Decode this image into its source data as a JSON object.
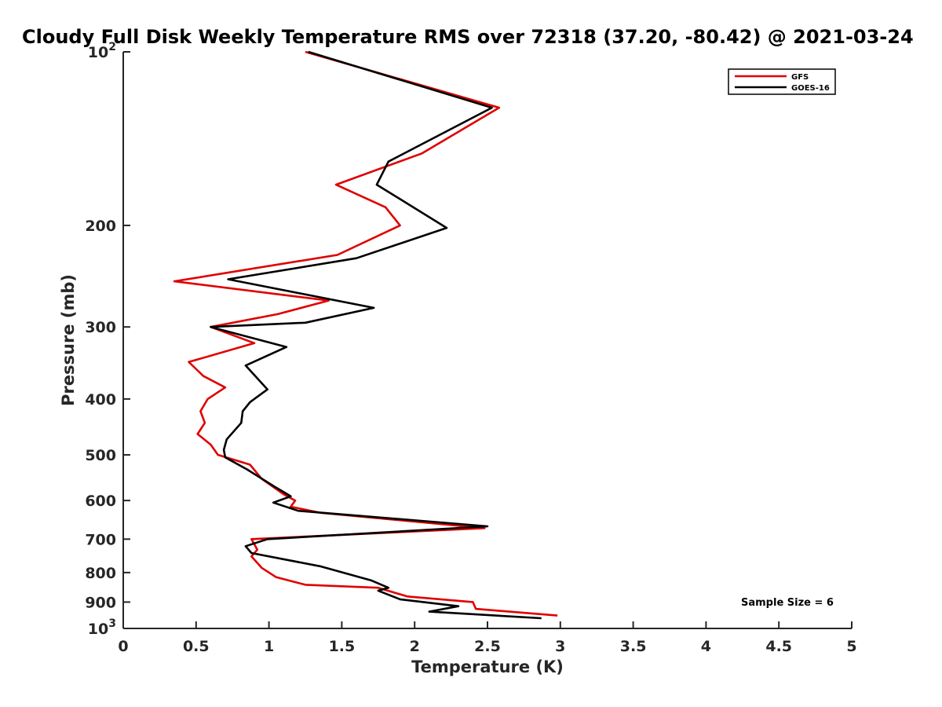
{
  "chart_data": {
    "type": "line",
    "title": "Cloudy Full Disk Weekly Temperature RMS over 72318 (37.20, -80.42) @ 2021-03-24",
    "xlabel": "Temperature (K)",
    "ylabel": "Pressure (mb)",
    "xlim": [
      0,
      5
    ],
    "ylim": [
      100,
      1000
    ],
    "y_scale": "log",
    "y_reversed": true,
    "x_ticks": [
      0,
      0.5,
      1,
      1.5,
      2,
      2.5,
      3,
      3.5,
      4,
      4.5,
      5
    ],
    "x_tick_labels": [
      "0",
      "0.5",
      "1",
      "1.5",
      "2",
      "2.5",
      "3",
      "3.5",
      "4",
      "4.5",
      "5"
    ],
    "y_ticks": [
      100,
      200,
      300,
      400,
      500,
      600,
      700,
      800,
      900,
      1000
    ],
    "y_tick_labels": [
      {
        "base": "10",
        "exp": "2"
      },
      {
        "base": "200",
        "exp": ""
      },
      {
        "base": "300",
        "exp": ""
      },
      {
        "base": "400",
        "exp": ""
      },
      {
        "base": "500",
        "exp": ""
      },
      {
        "base": "600",
        "exp": ""
      },
      {
        "base": "700",
        "exp": ""
      },
      {
        "base": "800",
        "exp": ""
      },
      {
        "base": "900",
        "exp": ""
      },
      {
        "base": "10",
        "exp": "3"
      }
    ],
    "grid": false,
    "legend_position": "top-right",
    "annotation": "Sample Size = 6",
    "series": [
      {
        "name": "GFS",
        "color": "#e00000",
        "points": [
          {
            "x": 1.25,
            "y": 100
          },
          {
            "x": 2.58,
            "y": 125
          },
          {
            "x": 2.05,
            "y": 150
          },
          {
            "x": 1.46,
            "y": 170
          },
          {
            "x": 1.8,
            "y": 186
          },
          {
            "x": 1.9,
            "y": 200
          },
          {
            "x": 1.47,
            "y": 225
          },
          {
            "x": 0.35,
            "y": 250
          },
          {
            "x": 1.41,
            "y": 270
          },
          {
            "x": 1.06,
            "y": 285
          },
          {
            "x": 0.6,
            "y": 300
          },
          {
            "x": 0.9,
            "y": 320
          },
          {
            "x": 0.45,
            "y": 345
          },
          {
            "x": 0.55,
            "y": 365
          },
          {
            "x": 0.7,
            "y": 382
          },
          {
            "x": 0.58,
            "y": 400
          },
          {
            "x": 0.53,
            "y": 420
          },
          {
            "x": 0.56,
            "y": 440
          },
          {
            "x": 0.51,
            "y": 460
          },
          {
            "x": 0.6,
            "y": 480
          },
          {
            "x": 0.65,
            "y": 500
          },
          {
            "x": 0.87,
            "y": 520
          },
          {
            "x": 0.95,
            "y": 550
          },
          {
            "x": 1.1,
            "y": 585
          },
          {
            "x": 1.18,
            "y": 600
          },
          {
            "x": 1.15,
            "y": 615
          },
          {
            "x": 1.35,
            "y": 630
          },
          {
            "x": 2.48,
            "y": 670
          },
          {
            "x": 0.88,
            "y": 700
          },
          {
            "x": 0.92,
            "y": 730
          },
          {
            "x": 0.88,
            "y": 750
          },
          {
            "x": 0.95,
            "y": 785
          },
          {
            "x": 1.05,
            "y": 815
          },
          {
            "x": 1.25,
            "y": 840
          },
          {
            "x": 1.75,
            "y": 850
          },
          {
            "x": 1.95,
            "y": 880
          },
          {
            "x": 2.4,
            "y": 900
          },
          {
            "x": 2.42,
            "y": 925
          },
          {
            "x": 2.98,
            "y": 950
          }
        ]
      },
      {
        "name": "GOES-16",
        "color": "#000000",
        "points": [
          {
            "x": 1.27,
            "y": 100
          },
          {
            "x": 2.53,
            "y": 125
          },
          {
            "x": 1.82,
            "y": 155
          },
          {
            "x": 1.74,
            "y": 170
          },
          {
            "x": 1.9,
            "y": 180
          },
          {
            "x": 2.22,
            "y": 202
          },
          {
            "x": 1.6,
            "y": 228
          },
          {
            "x": 0.72,
            "y": 248
          },
          {
            "x": 1.72,
            "y": 278
          },
          {
            "x": 1.25,
            "y": 295
          },
          {
            "x": 0.6,
            "y": 300
          },
          {
            "x": 1.12,
            "y": 325
          },
          {
            "x": 0.84,
            "y": 350
          },
          {
            "x": 0.99,
            "y": 385
          },
          {
            "x": 0.87,
            "y": 405
          },
          {
            "x": 0.82,
            "y": 420
          },
          {
            "x": 0.81,
            "y": 440
          },
          {
            "x": 0.71,
            "y": 470
          },
          {
            "x": 0.69,
            "y": 490
          },
          {
            "x": 0.7,
            "y": 505
          },
          {
            "x": 0.85,
            "y": 530
          },
          {
            "x": 1.05,
            "y": 570
          },
          {
            "x": 1.15,
            "y": 590
          },
          {
            "x": 1.03,
            "y": 605
          },
          {
            "x": 1.2,
            "y": 625
          },
          {
            "x": 2.5,
            "y": 665
          },
          {
            "x": 0.99,
            "y": 700
          },
          {
            "x": 0.84,
            "y": 720
          },
          {
            "x": 0.88,
            "y": 740
          },
          {
            "x": 1.35,
            "y": 780
          },
          {
            "x": 1.7,
            "y": 825
          },
          {
            "x": 1.82,
            "y": 850
          },
          {
            "x": 1.75,
            "y": 860
          },
          {
            "x": 1.9,
            "y": 890
          },
          {
            "x": 2.3,
            "y": 915
          },
          {
            "x": 2.1,
            "y": 935
          },
          {
            "x": 2.87,
            "y": 960
          }
        ]
      }
    ]
  }
}
